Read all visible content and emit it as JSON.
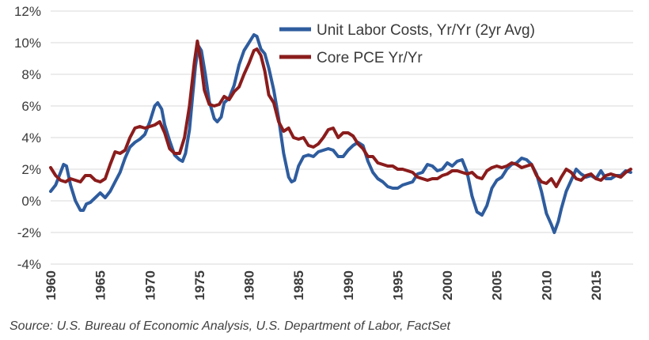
{
  "chart_data": {
    "type": "line",
    "title": "",
    "xlabel": "",
    "ylabel": "",
    "xlim": [
      1960,
      2018.75
    ],
    "ylim": [
      -4,
      12
    ],
    "x_ticks": [
      "1960",
      "1965",
      "1970",
      "1975",
      "1980",
      "1985",
      "1990",
      "1995",
      "2000",
      "2005",
      "2010",
      "2015"
    ],
    "y_ticks": [
      "12%",
      "10%",
      "8%",
      "6%",
      "4%",
      "2%",
      "0%",
      "-2%",
      "-4%"
    ],
    "grid": "horizontal",
    "legend_position": "top-right",
    "series": [
      {
        "name": "Unit Labor Costs, Yr/Yr (2yr Avg)",
        "color": "#2E5C9E",
        "points": [
          [
            1960.0,
            0.6
          ],
          [
            1960.5,
            1.0
          ],
          [
            1961.0,
            1.8
          ],
          [
            1961.3,
            2.3
          ],
          [
            1961.6,
            2.2
          ],
          [
            1962.0,
            1.0
          ],
          [
            1962.5,
            0.0
          ],
          [
            1963.0,
            -0.6
          ],
          [
            1963.3,
            -0.6
          ],
          [
            1963.6,
            -0.2
          ],
          [
            1964.0,
            -0.1
          ],
          [
            1964.5,
            0.2
          ],
          [
            1965.0,
            0.5
          ],
          [
            1965.5,
            0.2
          ],
          [
            1966.0,
            0.6
          ],
          [
            1966.5,
            1.2
          ],
          [
            1967.0,
            1.8
          ],
          [
            1967.5,
            2.7
          ],
          [
            1968.0,
            3.4
          ],
          [
            1968.5,
            3.7
          ],
          [
            1969.0,
            3.9
          ],
          [
            1969.5,
            4.2
          ],
          [
            1970.0,
            5.0
          ],
          [
            1970.5,
            6.0
          ],
          [
            1970.8,
            6.2
          ],
          [
            1971.2,
            5.8
          ],
          [
            1971.5,
            4.8
          ],
          [
            1972.0,
            3.8
          ],
          [
            1972.5,
            2.9
          ],
          [
            1973.0,
            2.6
          ],
          [
            1973.3,
            2.5
          ],
          [
            1973.6,
            3.0
          ],
          [
            1974.0,
            4.5
          ],
          [
            1974.3,
            6.5
          ],
          [
            1974.6,
            8.5
          ],
          [
            1974.9,
            9.8
          ],
          [
            1975.2,
            9.5
          ],
          [
            1975.6,
            8.0
          ],
          [
            1976.0,
            6.3
          ],
          [
            1976.5,
            5.2
          ],
          [
            1976.8,
            5.0
          ],
          [
            1977.2,
            5.3
          ],
          [
            1977.5,
            6.2
          ],
          [
            1978.0,
            6.5
          ],
          [
            1978.5,
            7.3
          ],
          [
            1979.0,
            8.6
          ],
          [
            1979.5,
            9.5
          ],
          [
            1980.0,
            10.0
          ],
          [
            1980.5,
            10.5
          ],
          [
            1980.8,
            10.4
          ],
          [
            1981.2,
            9.6
          ],
          [
            1981.6,
            9.3
          ],
          [
            1982.0,
            8.4
          ],
          [
            1982.5,
            7.0
          ],
          [
            1983.0,
            5.2
          ],
          [
            1983.5,
            3.0
          ],
          [
            1984.0,
            1.5
          ],
          [
            1984.3,
            1.2
          ],
          [
            1984.6,
            1.3
          ],
          [
            1985.0,
            2.2
          ],
          [
            1985.5,
            2.8
          ],
          [
            1986.0,
            2.9
          ],
          [
            1986.5,
            2.8
          ],
          [
            1987.0,
            3.1
          ],
          [
            1987.5,
            3.2
          ],
          [
            1988.0,
            3.3
          ],
          [
            1988.5,
            3.2
          ],
          [
            1989.0,
            2.8
          ],
          [
            1989.5,
            2.8
          ],
          [
            1990.0,
            3.2
          ],
          [
            1990.5,
            3.5
          ],
          [
            1991.0,
            3.7
          ],
          [
            1991.5,
            3.5
          ],
          [
            1992.0,
            2.5
          ],
          [
            1992.5,
            1.8
          ],
          [
            1993.0,
            1.4
          ],
          [
            1993.5,
            1.2
          ],
          [
            1994.0,
            0.9
          ],
          [
            1994.5,
            0.8
          ],
          [
            1995.0,
            0.8
          ],
          [
            1995.5,
            1.0
          ],
          [
            1996.0,
            1.1
          ],
          [
            1996.5,
            1.2
          ],
          [
            1997.0,
            1.7
          ],
          [
            1997.5,
            1.8
          ],
          [
            1998.0,
            2.3
          ],
          [
            1998.5,
            2.2
          ],
          [
            1999.0,
            1.9
          ],
          [
            1999.5,
            2.0
          ],
          [
            2000.0,
            2.4
          ],
          [
            2000.5,
            2.2
          ],
          [
            2001.0,
            2.5
          ],
          [
            2001.5,
            2.6
          ],
          [
            2002.0,
            1.8
          ],
          [
            2002.5,
            0.3
          ],
          [
            2003.0,
            -0.7
          ],
          [
            2003.5,
            -0.9
          ],
          [
            2004.0,
            -0.3
          ],
          [
            2004.5,
            0.8
          ],
          [
            2005.0,
            1.3
          ],
          [
            2005.5,
            1.5
          ],
          [
            2006.0,
            2.0
          ],
          [
            2006.5,
            2.3
          ],
          [
            2007.0,
            2.4
          ],
          [
            2007.5,
            2.7
          ],
          [
            2008.0,
            2.6
          ],
          [
            2008.5,
            2.3
          ],
          [
            2009.0,
            1.7
          ],
          [
            2009.5,
            0.6
          ],
          [
            2010.0,
            -0.8
          ],
          [
            2010.5,
            -1.5
          ],
          [
            2010.8,
            -2.0
          ],
          [
            2011.2,
            -1.3
          ],
          [
            2011.5,
            -0.5
          ],
          [
            2012.0,
            0.6
          ],
          [
            2012.5,
            1.3
          ],
          [
            2013.0,
            2.0
          ],
          [
            2013.5,
            1.7
          ],
          [
            2014.0,
            1.5
          ],
          [
            2014.5,
            1.6
          ],
          [
            2015.0,
            1.4
          ],
          [
            2015.5,
            1.9
          ],
          [
            2016.0,
            1.4
          ],
          [
            2016.5,
            1.4
          ],
          [
            2017.0,
            1.6
          ],
          [
            2017.5,
            1.6
          ],
          [
            2018.0,
            1.9
          ],
          [
            2018.5,
            1.8
          ]
        ]
      },
      {
        "name": "Core PCE Yr/Yr",
        "color": "#8B1C1C",
        "points": [
          [
            1960.0,
            2.1
          ],
          [
            1960.5,
            1.6
          ],
          [
            1961.0,
            1.3
          ],
          [
            1961.5,
            1.2
          ],
          [
            1962.0,
            1.4
          ],
          [
            1962.5,
            1.3
          ],
          [
            1963.0,
            1.2
          ],
          [
            1963.5,
            1.6
          ],
          [
            1964.0,
            1.6
          ],
          [
            1964.5,
            1.3
          ],
          [
            1965.0,
            1.2
          ],
          [
            1965.5,
            1.4
          ],
          [
            1966.0,
            2.3
          ],
          [
            1966.5,
            3.1
          ],
          [
            1967.0,
            3.0
          ],
          [
            1967.5,
            3.2
          ],
          [
            1968.0,
            4.0
          ],
          [
            1968.5,
            4.6
          ],
          [
            1969.0,
            4.7
          ],
          [
            1969.5,
            4.6
          ],
          [
            1970.0,
            4.7
          ],
          [
            1970.5,
            4.8
          ],
          [
            1971.0,
            5.0
          ],
          [
            1971.5,
            4.3
          ],
          [
            1972.0,
            3.3
          ],
          [
            1972.5,
            3.0
          ],
          [
            1973.0,
            3.0
          ],
          [
            1973.5,
            4.0
          ],
          [
            1974.0,
            6.0
          ],
          [
            1974.5,
            8.8
          ],
          [
            1974.8,
            10.1
          ],
          [
            1975.1,
            9.0
          ],
          [
            1975.5,
            7.0
          ],
          [
            1976.0,
            6.1
          ],
          [
            1976.5,
            6.0
          ],
          [
            1977.0,
            6.1
          ],
          [
            1977.5,
            6.6
          ],
          [
            1978.0,
            6.4
          ],
          [
            1978.5,
            6.9
          ],
          [
            1979.0,
            7.2
          ],
          [
            1979.5,
            8.0
          ],
          [
            1980.0,
            8.7
          ],
          [
            1980.5,
            9.5
          ],
          [
            1980.8,
            9.6
          ],
          [
            1981.2,
            9.2
          ],
          [
            1981.6,
            8.2
          ],
          [
            1982.0,
            6.7
          ],
          [
            1982.5,
            6.2
          ],
          [
            1983.0,
            5.0
          ],
          [
            1983.5,
            4.4
          ],
          [
            1984.0,
            4.6
          ],
          [
            1984.5,
            4.0
          ],
          [
            1985.0,
            3.9
          ],
          [
            1985.5,
            4.0
          ],
          [
            1986.0,
            3.5
          ],
          [
            1986.5,
            3.4
          ],
          [
            1987.0,
            3.6
          ],
          [
            1987.5,
            4.0
          ],
          [
            1988.0,
            4.5
          ],
          [
            1988.5,
            4.6
          ],
          [
            1989.0,
            4.0
          ],
          [
            1989.5,
            4.3
          ],
          [
            1990.0,
            4.3
          ],
          [
            1990.5,
            4.1
          ],
          [
            1991.0,
            3.6
          ],
          [
            1991.5,
            3.3
          ],
          [
            1992.0,
            2.8
          ],
          [
            1992.5,
            2.8
          ],
          [
            1993.0,
            2.4
          ],
          [
            1993.5,
            2.3
          ],
          [
            1994.0,
            2.2
          ],
          [
            1994.5,
            2.2
          ],
          [
            1995.0,
            2.0
          ],
          [
            1995.5,
            2.0
          ],
          [
            1996.0,
            1.9
          ],
          [
            1996.5,
            1.8
          ],
          [
            1997.0,
            1.5
          ],
          [
            1997.5,
            1.4
          ],
          [
            1998.0,
            1.3
          ],
          [
            1998.5,
            1.4
          ],
          [
            1999.0,
            1.4
          ],
          [
            1999.5,
            1.6
          ],
          [
            2000.0,
            1.7
          ],
          [
            2000.5,
            1.9
          ],
          [
            2001.0,
            1.9
          ],
          [
            2001.5,
            1.8
          ],
          [
            2002.0,
            1.7
          ],
          [
            2002.5,
            1.8
          ],
          [
            2003.0,
            1.5
          ],
          [
            2003.5,
            1.4
          ],
          [
            2004.0,
            1.9
          ],
          [
            2004.5,
            2.1
          ],
          [
            2005.0,
            2.2
          ],
          [
            2005.5,
            2.1
          ],
          [
            2006.0,
            2.2
          ],
          [
            2006.5,
            2.4
          ],
          [
            2007.0,
            2.3
          ],
          [
            2007.5,
            2.1
          ],
          [
            2008.0,
            2.2
          ],
          [
            2008.5,
            2.3
          ],
          [
            2009.0,
            1.6
          ],
          [
            2009.5,
            1.2
          ],
          [
            2010.0,
            1.1
          ],
          [
            2010.5,
            1.4
          ],
          [
            2011.0,
            0.9
          ],
          [
            2011.5,
            1.5
          ],
          [
            2012.0,
            2.0
          ],
          [
            2012.5,
            1.8
          ],
          [
            2013.0,
            1.4
          ],
          [
            2013.5,
            1.3
          ],
          [
            2014.0,
            1.6
          ],
          [
            2014.5,
            1.7
          ],
          [
            2015.0,
            1.4
          ],
          [
            2015.5,
            1.3
          ],
          [
            2016.0,
            1.6
          ],
          [
            2016.5,
            1.7
          ],
          [
            2017.0,
            1.6
          ],
          [
            2017.5,
            1.5
          ],
          [
            2018.0,
            1.8
          ],
          [
            2018.5,
            2.0
          ]
        ]
      }
    ]
  },
  "source": "Source: U.S. Bureau of Economic Analysis, U.S. Department of Labor, FactSet"
}
